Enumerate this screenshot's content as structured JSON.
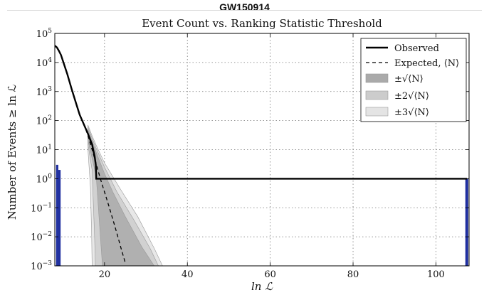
{
  "page_title": "GW150914",
  "chart_data": {
    "type": "line",
    "title": "Event Count vs. Ranking Statistic Threshold",
    "xlabel": "ln ℒ",
    "ylabel": "Number of Events ≥ ln ℒ",
    "xlim": [
      8,
      108
    ],
    "ylim": [
      0.001,
      100000
    ],
    "yscale": "log",
    "grid": true,
    "legend_position": "top-right",
    "x_ticks": [
      20,
      40,
      60,
      80,
      100
    ],
    "y_ticks": [
      {
        "value": 100000,
        "base": "10",
        "exp": "5"
      },
      {
        "value": 10000,
        "base": "10",
        "exp": "4"
      },
      {
        "value": 1000,
        "base": "10",
        "exp": "3"
      },
      {
        "value": 100,
        "base": "10",
        "exp": "2"
      },
      {
        "value": 10,
        "base": "10",
        "exp": "1"
      },
      {
        "value": 1,
        "base": "10",
        "exp": "0"
      },
      {
        "value": 0.1,
        "base": "10",
        "exp": "−1"
      },
      {
        "value": 0.01,
        "base": "10",
        "exp": "−2"
      },
      {
        "value": 0.001,
        "base": "10",
        "exp": "−3"
      }
    ],
    "series": [
      {
        "name": "Observed",
        "style": "solid",
        "color": "#000000",
        "points": [
          [
            8,
            38000
          ],
          [
            8.5,
            33000
          ],
          [
            9,
            25000
          ],
          [
            9.5,
            18000
          ],
          [
            10,
            11000
          ],
          [
            11,
            4000
          ],
          [
            12,
            1300
          ],
          [
            13,
            450
          ],
          [
            14,
            160
          ],
          [
            15,
            75
          ],
          [
            16,
            35
          ],
          [
            17,
            15
          ],
          [
            17.6,
            6
          ],
          [
            17.9,
            3
          ],
          [
            18,
            1
          ],
          [
            107.5,
            1
          ]
        ]
      },
      {
        "name": "Expected, ⟨N⟩",
        "style": "dashed",
        "color": "#000000",
        "points": [
          [
            15,
            80
          ],
          [
            16,
            30
          ],
          [
            17,
            10
          ],
          [
            18,
            3.2
          ],
          [
            19,
            1
          ],
          [
            20,
            0.35
          ],
          [
            21,
            0.12
          ],
          [
            22,
            0.04
          ],
          [
            23,
            0.013
          ],
          [
            24,
            0.004
          ],
          [
            25,
            0.0013
          ]
        ]
      }
    ],
    "bands": [
      {
        "name": "±√⟨N⟩",
        "color": "#aaaaaa",
        "upper": [
          [
            16,
            50
          ],
          [
            17,
            20
          ],
          [
            18,
            8
          ],
          [
            20,
            1.5
          ],
          [
            22,
            0.35
          ],
          [
            25,
            0.05
          ],
          [
            29,
            0.0045
          ],
          [
            32,
            0.001
          ]
        ],
        "lower": [
          [
            16,
            20
          ],
          [
            17,
            5
          ],
          [
            18,
            1.2
          ],
          [
            19,
            0.01
          ],
          [
            19.5,
            0.001
          ]
        ]
      },
      {
        "name": "±2√⟨N⟩",
        "color": "#cccccc",
        "upper": [
          [
            16,
            60
          ],
          [
            17,
            25
          ],
          [
            18,
            11
          ],
          [
            20,
            2.5
          ],
          [
            23,
            0.35
          ],
          [
            27,
            0.04
          ],
          [
            31,
            0.004
          ],
          [
            33,
            0.001
          ]
        ],
        "lower": [
          [
            16,
            15
          ],
          [
            17,
            2
          ],
          [
            17.6,
            0.01
          ],
          [
            17.8,
            0.001
          ]
        ]
      },
      {
        "name": "±3√⟨N⟩",
        "color": "#e4e4e4",
        "upper": [
          [
            16,
            70
          ],
          [
            17,
            30
          ],
          [
            18,
            14
          ],
          [
            20,
            3.5
          ],
          [
            24,
            0.4
          ],
          [
            28,
            0.05
          ],
          [
            32,
            0.004
          ],
          [
            34,
            0.001
          ]
        ],
        "lower": [
          [
            16,
            10
          ],
          [
            16.6,
            0.5
          ],
          [
            16.9,
            0.01
          ],
          [
            17,
            0.001
          ]
        ]
      }
    ],
    "histogram": {
      "color": "#1f2fa0",
      "bars": [
        {
          "x0": 8.3,
          "x1": 8.85,
          "count": 3
        },
        {
          "x0": 8.85,
          "x1": 9.4,
          "count": 2
        },
        {
          "x0": 107.1,
          "x1": 107.8,
          "count": 1
        }
      ]
    }
  }
}
